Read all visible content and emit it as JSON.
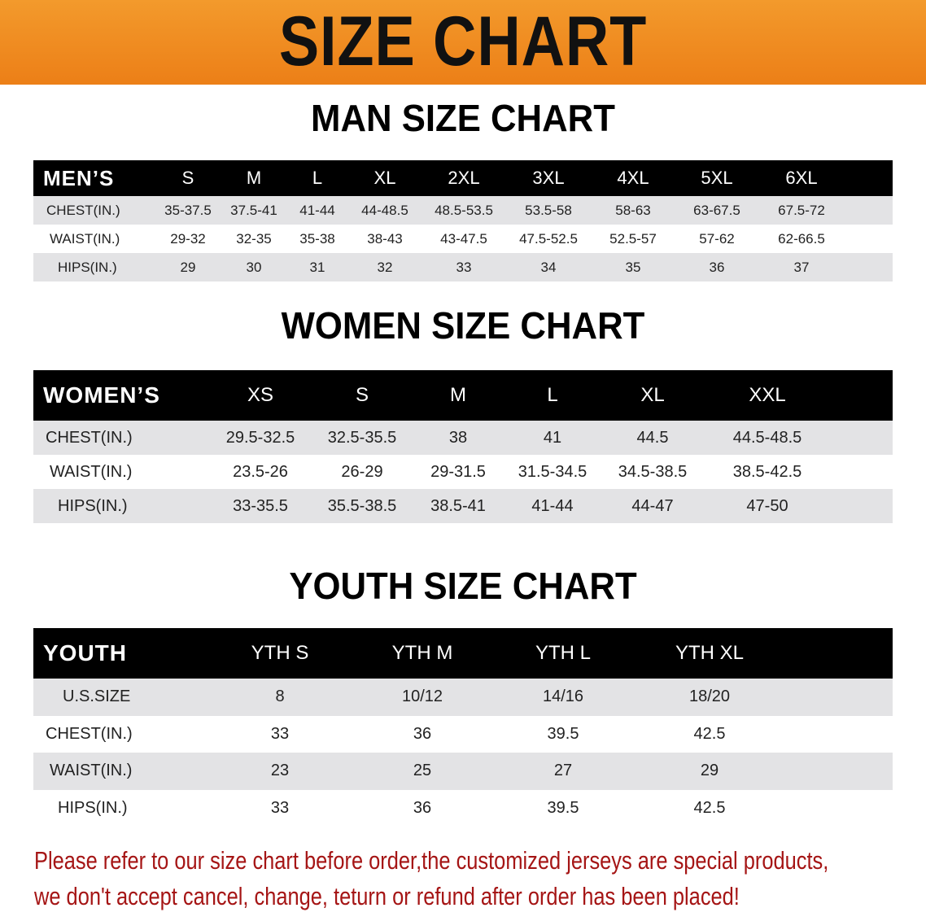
{
  "banner": {
    "title": "SIZE CHART",
    "color": "#ec7f17"
  },
  "men": {
    "title": "MAN SIZE CHART",
    "headers": [
      "MEN’S",
      "S",
      "M",
      "L",
      "XL",
      "2XL",
      "3XL",
      "4XL",
      "5XL",
      "6XL"
    ],
    "rows": [
      [
        "CHEST(IN.)",
        "35-37.5",
        "37.5-41",
        "41-44",
        "44-48.5",
        "48.5-53.5",
        "53.5-58",
        "58-63",
        "63-67.5",
        "67.5-72"
      ],
      [
        "WAIST(IN.)",
        "29-32",
        "32-35",
        "35-38",
        "38-43",
        "43-47.5",
        "47.5-52.5",
        "52.5-57",
        "57-62",
        "62-66.5"
      ],
      [
        "HIPS(IN.)",
        "29",
        "30",
        "31",
        "32",
        "33",
        "34",
        "35",
        "36",
        "37"
      ]
    ]
  },
  "women": {
    "title": "WOMEN SIZE CHART",
    "headers": [
      "WOMEN’S",
      "XS",
      "S",
      "M",
      "L",
      "XL",
      "XXL"
    ],
    "rows": [
      [
        "CHEST(IN.)",
        "29.5-32.5",
        "32.5-35.5",
        "38",
        "41",
        "44.5",
        "44.5-48.5"
      ],
      [
        "WAIST(IN.)",
        "23.5-26",
        "26-29",
        "29-31.5",
        "31.5-34.5",
        "34.5-38.5",
        "38.5-42.5"
      ],
      [
        "HIPS(IN.)",
        "33-35.5",
        "35.5-38.5",
        "38.5-41",
        "41-44",
        "44-47",
        "47-50"
      ]
    ]
  },
  "youth": {
    "title": "YOUTH SIZE CHART",
    "headers": [
      "YOUTH",
      "YTH S",
      "YTH M",
      "YTH L",
      "YTH XL"
    ],
    "rows": [
      [
        "U.S.SIZE",
        "8",
        "10/12",
        "14/16",
        "18/20"
      ],
      [
        "CHEST(IN.)",
        "33",
        "36",
        "39.5",
        "42.5"
      ],
      [
        "WAIST(IN.)",
        "23",
        "25",
        "27",
        "29"
      ],
      [
        "HIPS(IN.)",
        "33",
        "36",
        "39.5",
        "42.5"
      ]
    ]
  },
  "note": {
    "line1": "Please refer to our size chart before order,the customized jerseys are special products,",
    "line2": "we don't accept cancel, change, teturn or refund after order has been placed!",
    "color": "#a51515"
  }
}
